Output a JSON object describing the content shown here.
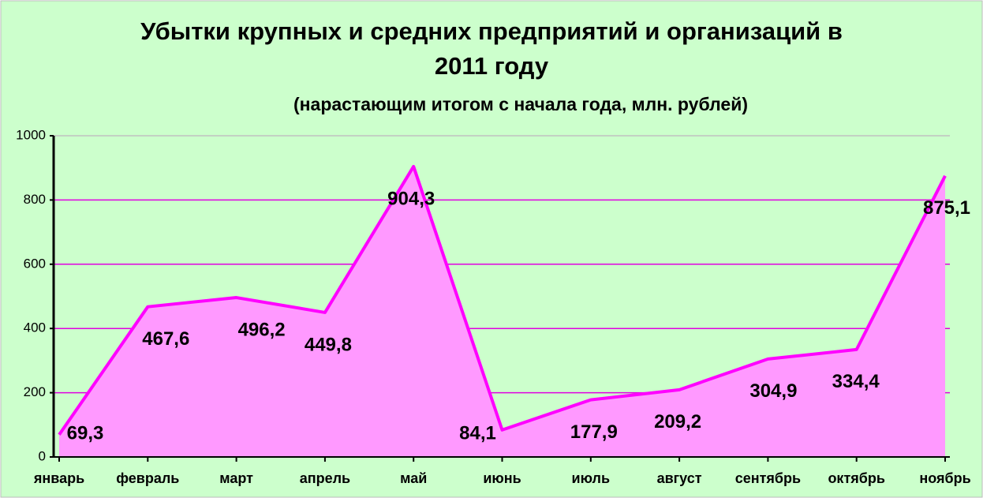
{
  "chart_data": {
    "type": "area",
    "title": "Убытки крупных и средних предприятий и организаций в 2011 году",
    "subtitle": "(нарастающим итогом с начала года, млн. рублей)",
    "categories": [
      "январь",
      "февраль",
      "март",
      "апрель",
      "май",
      "июнь",
      "июль",
      "август",
      "сентябрь",
      "октябрь",
      "ноябрь"
    ],
    "values": [
      69.3,
      467.6,
      496.2,
      449.8,
      904.3,
      84.1,
      177.9,
      209.2,
      304.9,
      334.4,
      875.1
    ],
    "value_labels": [
      "69,3",
      "467,6",
      "496,2",
      "449,8",
      "904,3",
      "84,1",
      "177,9",
      "209,2",
      "304,9",
      "334,4",
      "875,1"
    ],
    "color": "#ff00ff",
    "fill": "#ff99ff",
    "ylim": [
      0,
      1000
    ],
    "yticks": [
      0,
      200,
      400,
      600,
      800,
      1000
    ],
    "grid": true
  }
}
